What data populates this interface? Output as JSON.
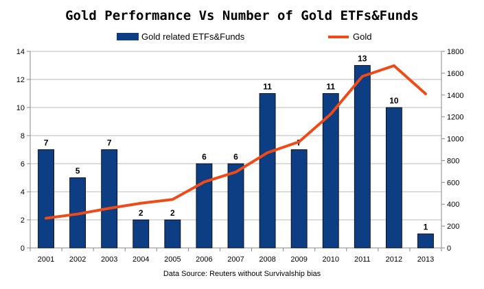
{
  "chart_data": {
    "type": "bar",
    "title": "Gold Performance Vs Number of Gold ETFs&Funds",
    "source_note": "Data Source: Reuters without Survivalship bias",
    "categories": [
      "2001",
      "2002",
      "2003",
      "2004",
      "2005",
      "2006",
      "2007",
      "2008",
      "2009",
      "2010",
      "2011",
      "2012",
      "2013"
    ],
    "series": [
      {
        "name": "Gold related ETFs&Funds",
        "kind": "bar",
        "axis": "left",
        "color": "#0d3d82",
        "values": [
          7,
          5,
          7,
          2,
          2,
          6,
          6,
          11,
          7,
          11,
          13,
          10,
          1
        ]
      },
      {
        "name": "Gold",
        "kind": "line",
        "axis": "right",
        "color": "#f04a18",
        "values": [
          272,
          310,
          363,
          409,
          444,
          604,
          695,
          872,
          972,
          1225,
          1571,
          1669,
          1411
        ]
      }
    ],
    "y_left": {
      "min": 0,
      "max": 14,
      "ticks": [
        "0",
        "2",
        "4",
        "6",
        "8",
        "10",
        "12",
        "14"
      ]
    },
    "y_right": {
      "min": 0,
      "max": 1800,
      "ticks": [
        "0",
        "200",
        "400",
        "600",
        "800",
        "1000",
        "1200",
        "1400",
        "1600",
        "1800"
      ]
    },
    "grid": true,
    "legend_position": "top"
  }
}
